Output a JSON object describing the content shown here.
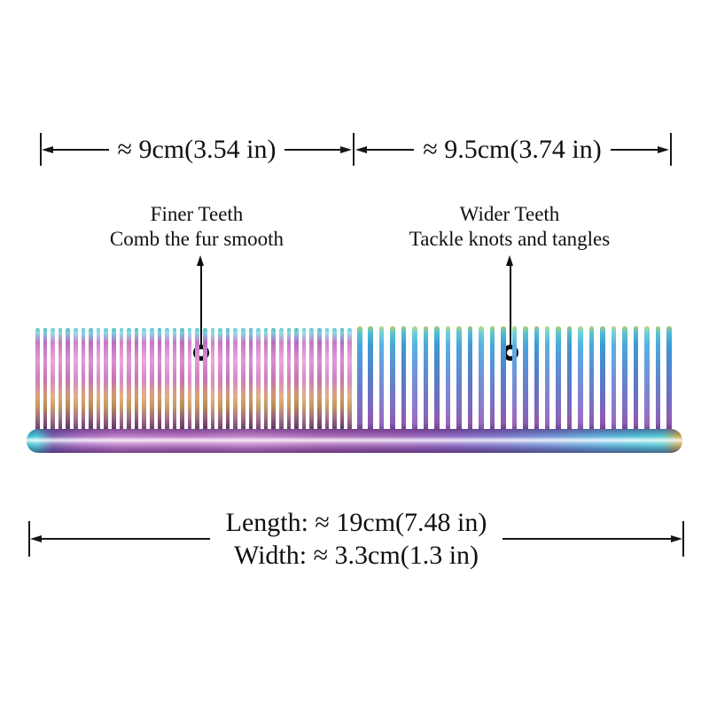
{
  "page": {
    "background": "#ffffff",
    "annotation_color": "#111111"
  },
  "top_measurement": {
    "left": {
      "label": "≈ 9cm(3.54 in)"
    },
    "right": {
      "label": "≈ 9.5cm(3.74 in)"
    }
  },
  "labels": {
    "finer": {
      "title": "Finer Teeth",
      "subtitle": "Comb the fur smooth"
    },
    "wider": {
      "title": "Wider Teeth",
      "subtitle": "Tackle knots and tangles"
    }
  },
  "bottom_measurement": {
    "length_label": "Length: ≈ 19cm(7.48 in)",
    "width_label": "Width: ≈ 3.3cm(1.3 in)"
  },
  "comb": {
    "description": "rainbow iridescent pet grooming comb",
    "fine_teeth_count": 42,
    "wide_teeth_count": 29,
    "fine_tooth_gradients": [
      "linear-gradient(180deg,#5ec9cf 0%,#8fd6e0 5%,#c977c5 14%,#e19ad6 32%,#cd7fc0 50%,#dba27b 66%,#c39a5e 76%,#a06a84 88%,#5e3a62 100%)",
      "linear-gradient(180deg,#54c0b8 0%,#7ecbe2 5%,#b76ec0 14%,#d88fd0 32%,#c673b4 50%,#d09a70 66%,#b88d55 76%,#8f5c7e 88%,#523158 100%)",
      "linear-gradient(180deg,#66cfd8 0%,#9adce6 5%,#d083cc 14%,#eaa8de 32%,#d48cc8 50%,#e2b089 66%,#caa268 76%,#a87392 88%,#68406e 100%)"
    ],
    "wide_tooth_gradients": [
      "linear-gradient(180deg,#b8d06a 0%,#5fc6c8 6%,#4aa8dc 18%,#5a8fd4 40%,#6b7cc8 60%,#7d6ec0 78%,#8a5fb4 92%,#5e3f86 100%)",
      "linear-gradient(180deg,#a8c878 0%,#52bdd4 6%,#3e9ad4 18%,#4f84cc 40%,#6374c4 60%,#7e66bc 78%,#9159ae 92%,#66408a 100%)",
      "linear-gradient(180deg,#c0d87e 0%,#6fd2da 6%,#56b2e4 18%,#699ade 40%,#7b88d2 60%,#8d78cc 78%,#9c6ac0 92%,#6f4a94 100%)"
    ],
    "spine_gradient": "linear-gradient(90deg,#2fb9c9 0%,#49cdd6 1.5%,#7a62b2 4%,#a76bc2 8%,#c07fca 14%,#b873c2 24%,#c383cb 34%,#ad6cba 44%,#a266b8 54%,#8f68c2 64%,#7d79cc 72%,#6f94d6 80%,#5db4de 88%,#4cc6d8 94%,#52cbd2 97%,#c9a84e 99.5%)"
  }
}
